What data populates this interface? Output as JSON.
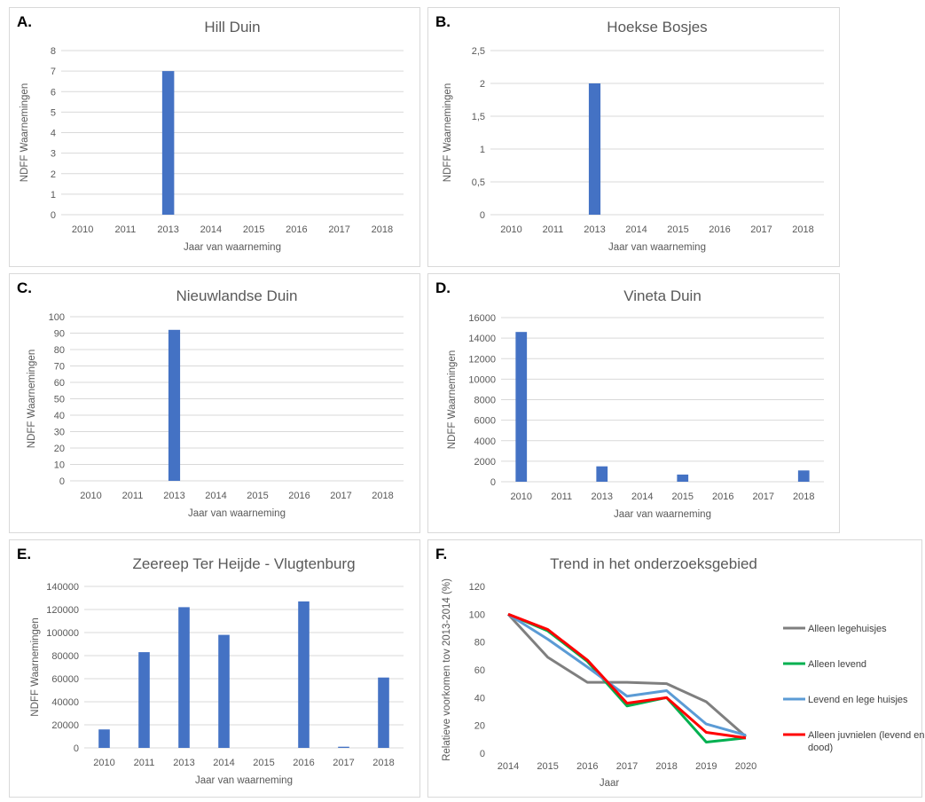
{
  "colors": {
    "bar": "#4472C4",
    "gridline": "#d9d9d9",
    "axis_text": "#595959",
    "series": {
      "Alleen legehuisjes": "#7f7f7f",
      "Alleen levend": "#00b050",
      "Levend en lege huisjes": "#5b9bd5",
      "Alleen juvnielen (levend en dood)": "#ff0000"
    }
  },
  "chart_data": [
    {
      "id": "A",
      "letter": "A.",
      "type": "bar",
      "title": "Hill Duin",
      "xlabel": "Jaar van waarneming",
      "ylabel": "NDFF Waarnemingen",
      "categories": [
        "2010",
        "2011",
        "2013",
        "2014",
        "2015",
        "2016",
        "2017",
        "2018"
      ],
      "values": [
        0,
        0,
        7,
        0,
        0,
        0,
        0,
        0
      ],
      "ylim": [
        0,
        8
      ],
      "yticks": [
        0,
        1,
        2,
        3,
        4,
        5,
        6,
        7,
        8
      ],
      "ytick_labels": [
        "0",
        "1",
        "2",
        "3",
        "4",
        "5",
        "6",
        "7",
        "8"
      ],
      "grid": true
    },
    {
      "id": "B",
      "letter": "B.",
      "type": "bar",
      "title": "Hoekse Bosjes",
      "xlabel": "Jaar van waarneming",
      "ylabel": "NDFF Waarnemingen",
      "categories": [
        "2010",
        "2011",
        "2013",
        "2014",
        "2015",
        "2016",
        "2017",
        "2018"
      ],
      "values": [
        0,
        0,
        2,
        0,
        0,
        0,
        0,
        0
      ],
      "ylim": [
        0,
        2.5
      ],
      "yticks": [
        0,
        0.5,
        1,
        1.5,
        2,
        2.5
      ],
      "ytick_labels": [
        "0",
        "0,5",
        "1",
        "1,5",
        "2",
        "2,5"
      ],
      "grid": true
    },
    {
      "id": "C",
      "letter": "C.",
      "type": "bar",
      "title": "Nieuwlandse Duin",
      "xlabel": "Jaar van waarneming",
      "ylabel": "NDFF Waarnemingen",
      "categories": [
        "2010",
        "2011",
        "2013",
        "2014",
        "2015",
        "2016",
        "2017",
        "2018"
      ],
      "values": [
        0,
        0,
        92,
        0,
        0,
        0,
        0,
        0
      ],
      "ylim": [
        0,
        100
      ],
      "yticks": [
        0,
        10,
        20,
        30,
        40,
        50,
        60,
        70,
        80,
        90,
        100
      ],
      "ytick_labels": [
        "0",
        "10",
        "20",
        "30",
        "40",
        "50",
        "60",
        "70",
        "80",
        "90",
        "100"
      ],
      "grid": true
    },
    {
      "id": "D",
      "letter": "D.",
      "type": "bar",
      "title": "Vineta Duin",
      "xlabel": "Jaar van waarneming",
      "ylabel": "NDFF Waarnemingen",
      "categories": [
        "2010",
        "2011",
        "2013",
        "2014",
        "2015",
        "2016",
        "2017",
        "2018"
      ],
      "values": [
        14600,
        0,
        1500,
        0,
        700,
        0,
        0,
        1100
      ],
      "ylim": [
        0,
        16000
      ],
      "yticks": [
        0,
        2000,
        4000,
        6000,
        8000,
        10000,
        12000,
        14000,
        16000
      ],
      "ytick_labels": [
        "0",
        "2000",
        "4000",
        "6000",
        "8000",
        "10000",
        "12000",
        "14000",
        "16000"
      ],
      "grid": true
    },
    {
      "id": "E",
      "letter": "E.",
      "type": "bar",
      "title": "Zeereep Ter Heijde - Vlugtenburg",
      "xlabel": "Jaar van waarneming",
      "ylabel": "NDFF Waarnemingen",
      "categories": [
        "2010",
        "2011",
        "2013",
        "2014",
        "2015",
        "2016",
        "2017",
        "2018"
      ],
      "values": [
        16000,
        83000,
        122000,
        98000,
        0,
        127000,
        1000,
        61000
      ],
      "ylim": [
        0,
        140000
      ],
      "yticks": [
        0,
        20000,
        40000,
        60000,
        80000,
        100000,
        120000,
        140000
      ],
      "ytick_labels": [
        "0",
        "20000",
        "40000",
        "60000",
        "80000",
        "100000",
        "120000",
        "140000"
      ],
      "grid": true
    },
    {
      "id": "F",
      "letter": "F.",
      "type": "line",
      "title": "Trend in het onderzoeksgebied",
      "xlabel": "Jaar",
      "ylabel": "Relatieve voorkomen tov 2013-2014 (%)",
      "x": [
        "2014",
        "2015",
        "2016",
        "2017",
        "2018",
        "2019",
        "2020"
      ],
      "ylim": [
        0,
        120
      ],
      "yticks": [
        0,
        20,
        40,
        60,
        80,
        100,
        120
      ],
      "ytick_labels": [
        "0",
        "20",
        "40",
        "60",
        "80",
        "100",
        "120"
      ],
      "grid": false,
      "legend_position": "right",
      "series": [
        {
          "name": "Alleen legehuisjes",
          "values": [
            100,
            69,
            51,
            51,
            50,
            37,
            12
          ]
        },
        {
          "name": "Alleen levend",
          "values": [
            100,
            88,
            66,
            34,
            40,
            8,
            11
          ]
        },
        {
          "name": "Levend en lege huisjes",
          "values": [
            100,
            82,
            62,
            41,
            45,
            21,
            13
          ]
        },
        {
          "name": "Alleen juvnielen (levend en dood)",
          "values": [
            100,
            89,
            67,
            36,
            40,
            15,
            11
          ]
        }
      ]
    }
  ]
}
